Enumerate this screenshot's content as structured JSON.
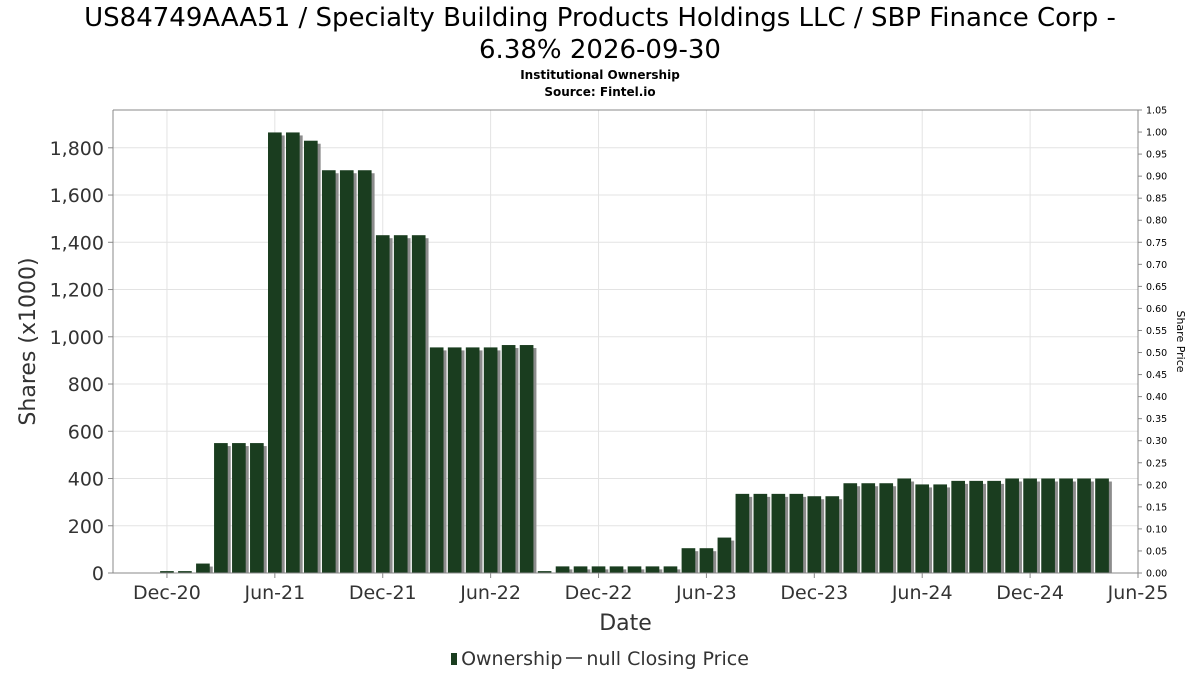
{
  "chart_data": {
    "type": "bar",
    "title_line1": "US84749AAA51 / Specialty Building Products Holdings LLC / SBP Finance Corp -",
    "title_line2": "6.38% 2026-09-30",
    "subtitle1": "Institutional Ownership",
    "subtitle2": "Source: Fintel.io",
    "xlabel": "Date",
    "ylabel": "Shares (x1000)",
    "y2label": "Share Price",
    "ylim": [
      0,
      1960
    ],
    "y2lim": [
      0,
      1.05
    ],
    "yticks": [
      0,
      200,
      400,
      600,
      800,
      1000,
      1200,
      1400,
      1600,
      1800
    ],
    "ytick_labels": [
      "0",
      "200",
      "400",
      "600",
      "800",
      "1,000",
      "1,200",
      "1,400",
      "1,600",
      "1,800"
    ],
    "y2ticks": [
      "0.00",
      "0.05",
      "0.10",
      "0.15",
      "0.20",
      "0.25",
      "0.30",
      "0.35",
      "0.40",
      "0.45",
      "0.50",
      "0.55",
      "0.60",
      "0.65",
      "0.70",
      "0.75",
      "0.80",
      "0.85",
      "0.90",
      "0.95",
      "1.00",
      "1.05"
    ],
    "xticks": [
      {
        "label": "Dec-20",
        "month": 0
      },
      {
        "label": "Jun-21",
        "month": 6
      },
      {
        "label": "Dec-21",
        "month": 12
      },
      {
        "label": "Jun-22",
        "month": 18
      },
      {
        "label": "Dec-22",
        "month": 24
      },
      {
        "label": "Jun-23",
        "month": 30
      },
      {
        "label": "Dec-23",
        "month": 36
      },
      {
        "label": "Jun-24",
        "month": 42
      },
      {
        "label": "Dec-24",
        "month": 48
      },
      {
        "label": "Jun-25",
        "month": 54
      }
    ],
    "xlim_months": [
      -3,
      54
    ],
    "grid": true,
    "legend_position": "bottom",
    "series": [
      {
        "name": "Ownership",
        "color": "#1a3d1f",
        "months": [
          0,
          1,
          2,
          3,
          4,
          5,
          6,
          7,
          8,
          9,
          10,
          11,
          12,
          13,
          14,
          15,
          16,
          17,
          18,
          19,
          20,
          21,
          22,
          23,
          24,
          25,
          26,
          27,
          28,
          29,
          30,
          31,
          32,
          33,
          34,
          35,
          36,
          37,
          38,
          39,
          40,
          41,
          42,
          43,
          44,
          45,
          46,
          47,
          48,
          49,
          50,
          51,
          52
        ],
        "values": [
          8,
          8,
          40,
          550,
          550,
          550,
          1865,
          1865,
          1830,
          1705,
          1705,
          1705,
          1430,
          1430,
          1430,
          955,
          955,
          955,
          955,
          965,
          965,
          8,
          28,
          28,
          28,
          28,
          28,
          28,
          28,
          105,
          105,
          150,
          335,
          335,
          335,
          335,
          325,
          325,
          380,
          380,
          380,
          400,
          375,
          375,
          390,
          390,
          390,
          400,
          400,
          400,
          400,
          400,
          400
        ]
      }
    ],
    "legend": {
      "ownership": "Ownership",
      "price": "null Closing Price"
    }
  }
}
